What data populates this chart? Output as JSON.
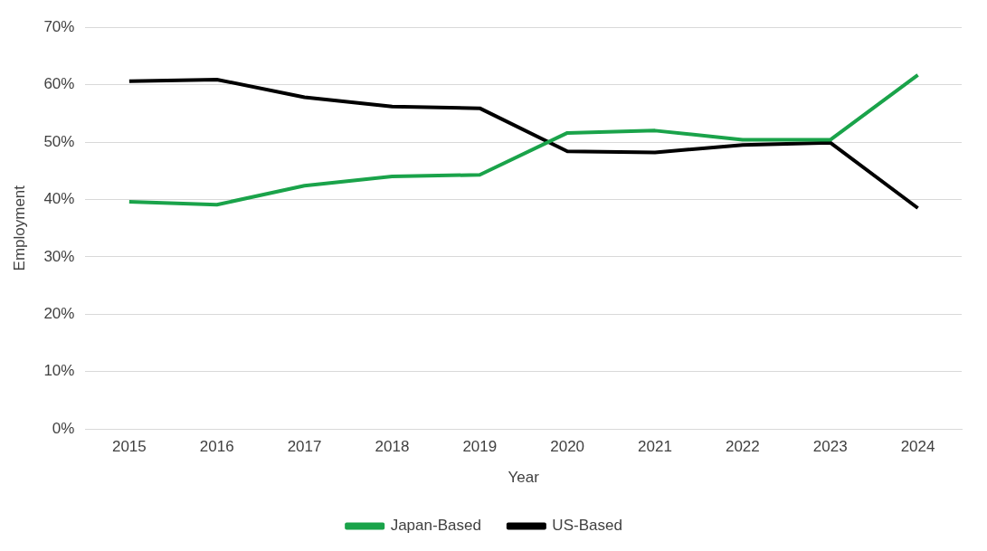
{
  "chart_data": {
    "type": "line",
    "xlabel": "Year",
    "ylabel": "Employment",
    "categories": [
      "2015",
      "2016",
      "2017",
      "2018",
      "2019",
      "2020",
      "2021",
      "2022",
      "2023",
      "2024"
    ],
    "series": [
      {
        "name": "Japan-Based",
        "color": "#1aa34a",
        "values": [
          39.6,
          39.1,
          42.4,
          44.0,
          44.3,
          51.6,
          52.0,
          50.4,
          50.4,
          61.7
        ]
      },
      {
        "name": "US-Based",
        "color": "#000000",
        "values": [
          60.6,
          60.9,
          57.8,
          56.2,
          55.9,
          48.4,
          48.2,
          49.5,
          49.9,
          38.5
        ]
      }
    ],
    "ylim": [
      0,
      70
    ],
    "yticks": [
      {
        "value": 0,
        "label": "0%"
      },
      {
        "value": 10,
        "label": "10%"
      },
      {
        "value": 20,
        "label": "20%"
      },
      {
        "value": 30,
        "label": "30%"
      },
      {
        "value": 40,
        "label": "40%"
      },
      {
        "value": 50,
        "label": "50%"
      },
      {
        "value": 60,
        "label": "60%"
      },
      {
        "value": 70,
        "label": "70%"
      }
    ],
    "grid": "y",
    "legend": "bottom",
    "marker": "none",
    "line_style": "solid"
  }
}
